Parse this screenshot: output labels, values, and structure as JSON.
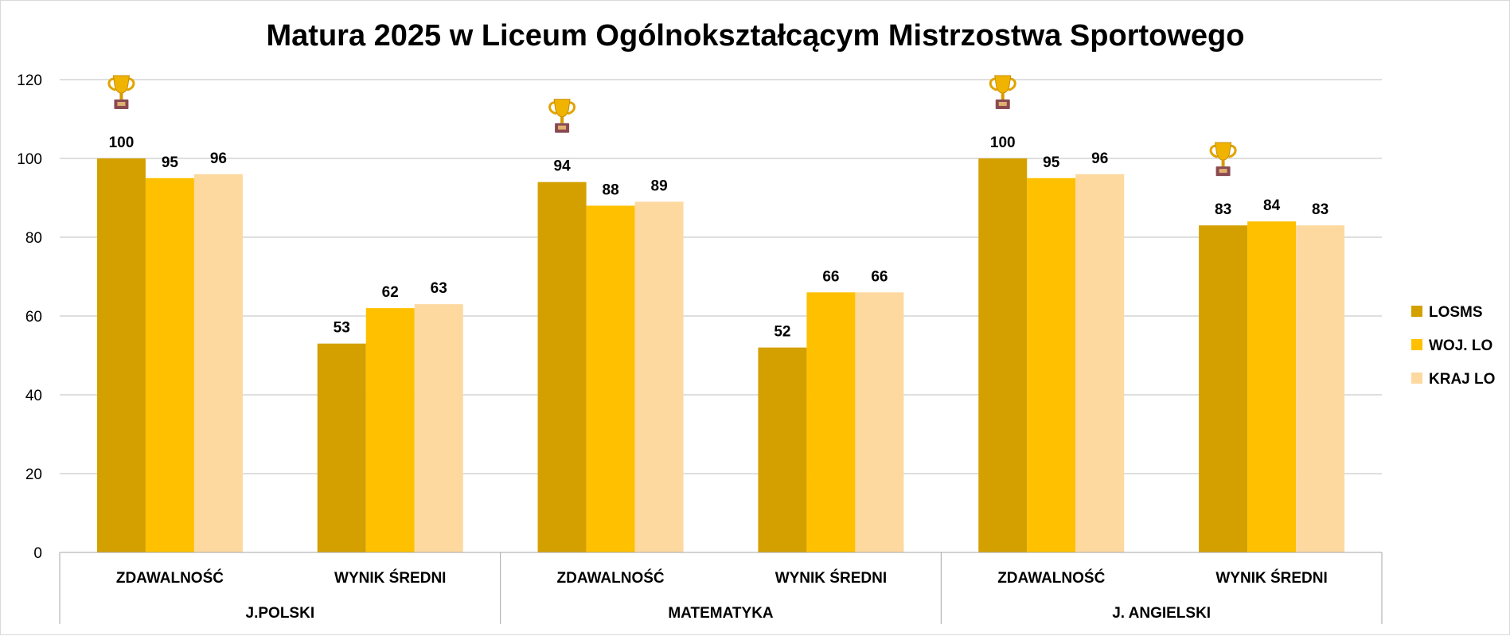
{
  "chart_data": {
    "type": "bar",
    "title": "Matura 2025 w Liceum Ogólnokształcącym Mistrzostwa Sportowego",
    "xlabel": "",
    "ylabel": "",
    "ylim": [
      0,
      120
    ],
    "yticks": [
      0,
      20,
      40,
      60,
      80,
      100,
      120
    ],
    "grid": true,
    "legend_position": "right",
    "categories": [
      {
        "label": "ZDAWALNOŚĆ",
        "group": "J.POLSKI"
      },
      {
        "label": "WYNIK ŚREDNI",
        "group": "J.POLSKI"
      },
      {
        "label": "ZDAWALNOŚĆ",
        "group": "MATEMATYKA"
      },
      {
        "label": "WYNIK ŚREDNI",
        "group": "MATEMATYKA"
      },
      {
        "label": "ZDAWALNOŚĆ",
        "group": "J. ANGIELSKI"
      },
      {
        "label": "WYNIK ŚREDNI",
        "group": "J. ANGIELSKI"
      }
    ],
    "groups": [
      "J.POLSKI",
      "MATEMATYKA",
      "J. ANGIELSKI"
    ],
    "series": [
      {
        "name": "LOSMS",
        "color": "#d4a000",
        "values": [
          100,
          53,
          94,
          52,
          100,
          83
        ]
      },
      {
        "name": "WOJ. LO",
        "color": "#ffc000",
        "values": [
          95,
          62,
          88,
          66,
          95,
          84
        ]
      },
      {
        "name": "KRAJ LO",
        "color": "#fdd9a0",
        "values": [
          96,
          63,
          89,
          66,
          96,
          83
        ]
      }
    ],
    "trophy_icon": "trophy-icon",
    "trophy_on_categories": [
      0,
      2,
      4,
      5
    ]
  }
}
